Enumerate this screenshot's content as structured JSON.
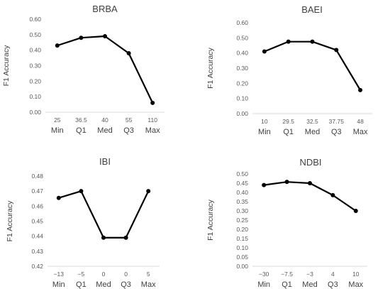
{
  "chart_data": [
    {
      "type": "line",
      "title": "BRBA",
      "ylabel": "F1 Accuracy",
      "categories": [
        "Min",
        "Q1",
        "Med",
        "Q3",
        "Max"
      ],
      "threshold_labels": [
        "25",
        "36.5",
        "40",
        "55",
        "110"
      ],
      "values": [
        0.43,
        0.48,
        0.49,
        0.38,
        0.06
      ],
      "ylim": [
        0.0,
        0.6
      ],
      "yticks": [
        "0.00",
        "0.10",
        "0.20",
        "0.30",
        "0.40",
        "0.50",
        "0.60"
      ],
      "grid": false,
      "legend": "none"
    },
    {
      "type": "line",
      "title": "BAEI",
      "ylabel": "F1 Accuracy",
      "categories": [
        "Min",
        "Q1",
        "Med",
        "Q3",
        "Max"
      ],
      "threshold_labels": [
        "10",
        "29.5",
        "32.5",
        "37.75",
        "48"
      ],
      "values": [
        0.41,
        0.475,
        0.475,
        0.42,
        0.155
      ],
      "ylim": [
        0.0,
        0.6
      ],
      "yticks": [
        "0.00",
        "0.10",
        "0.20",
        "0.30",
        "0.40",
        "0.50",
        "0.60"
      ],
      "grid": false,
      "legend": "none"
    },
    {
      "type": "line",
      "title": "IBI",
      "ylabel": "F1 Accuracy",
      "categories": [
        "Min",
        "Q1",
        "Med",
        "Q3",
        "Max"
      ],
      "threshold_labels": [
        "−13",
        "−5",
        "0",
        "0",
        "5"
      ],
      "values": [
        0.4655,
        0.47,
        0.439,
        0.439,
        0.47
      ],
      "ylim": [
        0.42,
        0.48
      ],
      "yticks": [
        "0.42",
        "0.43",
        "0.44",
        "0.45",
        "0.46",
        "0.47",
        "0.48"
      ],
      "grid": false,
      "legend": "none"
    },
    {
      "type": "line",
      "title": "NDBI",
      "ylabel": "F1 Accuracy",
      "categories": [
        "Min",
        "Q1",
        "Med",
        "Q3",
        "Max"
      ],
      "threshold_labels": [
        "−30",
        "−7.5",
        "−3",
        "4",
        "10"
      ],
      "values": [
        0.44,
        0.457,
        0.45,
        0.385,
        0.3
      ],
      "ylim": [
        0.0,
        0.5
      ],
      "yticks": [
        "0.00",
        "0.05",
        "0.10",
        "0.15",
        "0.20",
        "0.25",
        "0.30",
        "0.35",
        "0.40",
        "0.45",
        "0.50"
      ],
      "grid": false,
      "legend": "none"
    }
  ],
  "colors": {
    "line": "#000000",
    "text": "#404040",
    "tick_text": "#595959",
    "axis": "#d9d9d9"
  }
}
